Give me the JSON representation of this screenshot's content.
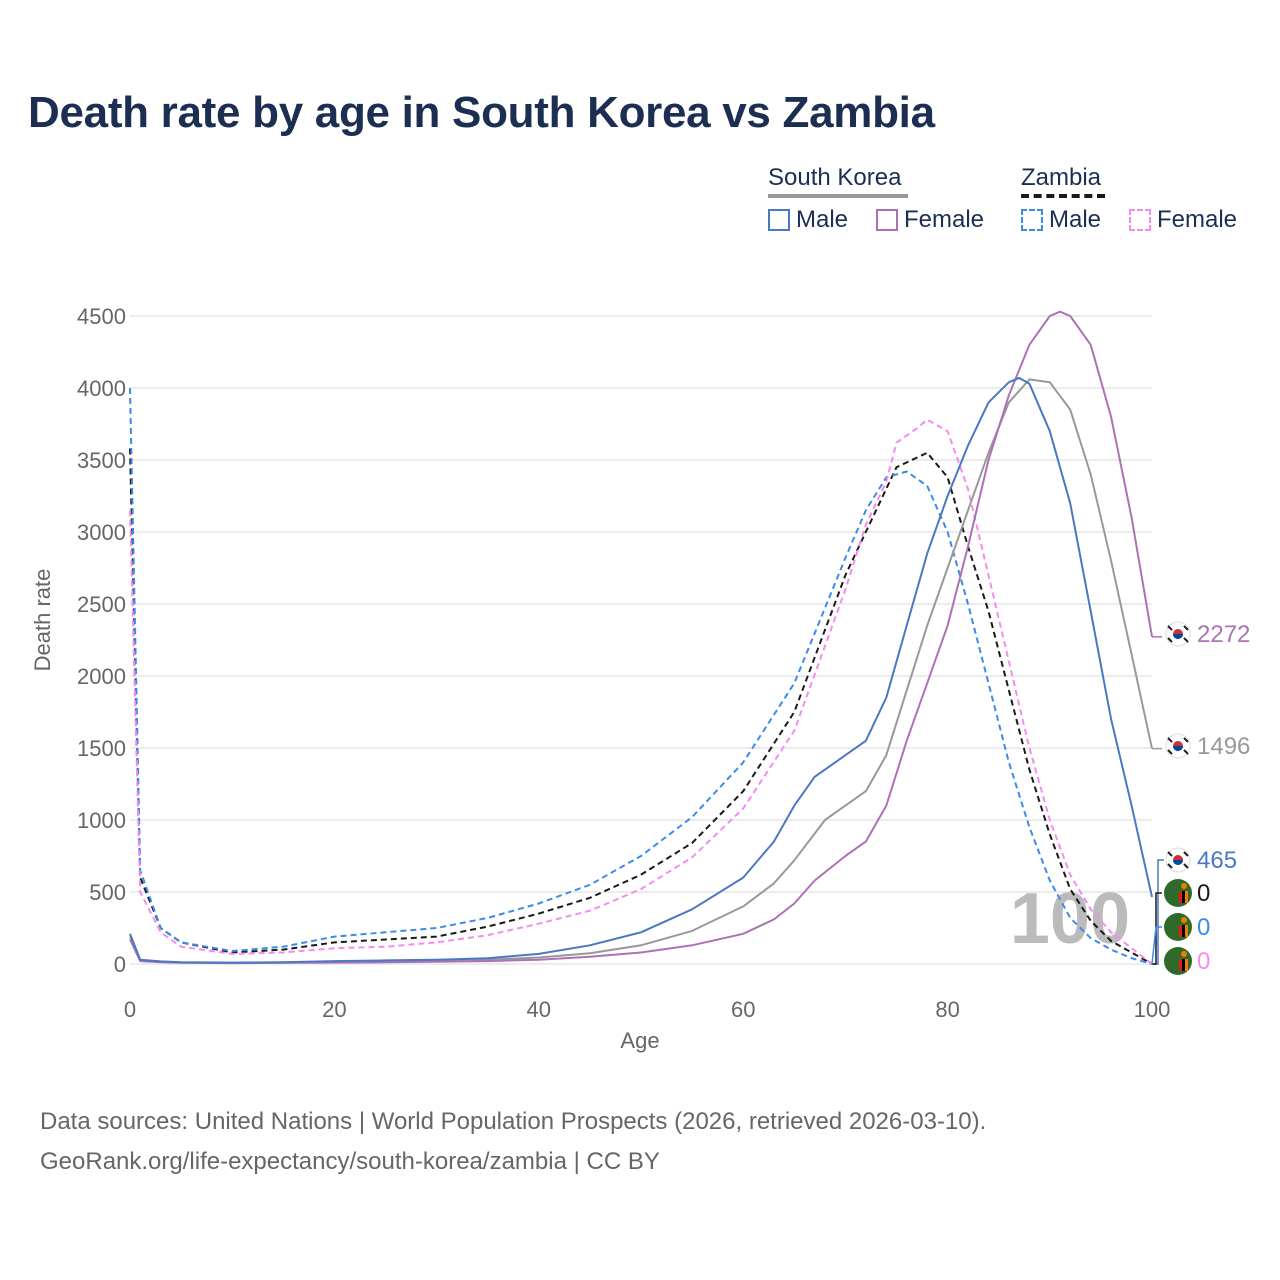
{
  "title": "Death rate by age in South Korea vs Zambia",
  "legend": {
    "south_korea": "South Korea",
    "zambia": "Zambia",
    "male": "Male",
    "female": "Female"
  },
  "footer": {
    "line1": "Data sources: United Nations | World Population Prospects (2026, retrieved 2026-03-10).",
    "line2": "GeoRank.org/life-expectancy/south-korea/zambia | CC BY"
  },
  "watermark_age": "100",
  "colors": {
    "kr_male": "#4a78c2",
    "kr_female": "#ad72b4",
    "kr_total": "#999999",
    "zm_male": "#3d8be8",
    "zm_female": "#f58af0",
    "zm_total": "#1a1a1a",
    "grid": "#e6e6e6",
    "title": "#1c2f52"
  },
  "chart_data": {
    "type": "line",
    "xlabel": "Age",
    "ylabel": "Death rate",
    "xlim": [
      0,
      100
    ],
    "ylim": [
      0,
      4500
    ],
    "xticks": [
      0,
      20,
      40,
      60,
      80,
      100
    ],
    "yticks": [
      0,
      500,
      1000,
      1500,
      2000,
      2500,
      3000,
      3500,
      4000,
      4500
    ],
    "series": [
      {
        "id": "zm_total",
        "name": "Zambia total",
        "style": "dashed",
        "points": [
          [
            0,
            3580
          ],
          [
            1,
            600
          ],
          [
            3,
            250
          ],
          [
            5,
            150
          ],
          [
            10,
            80
          ],
          [
            15,
            100
          ],
          [
            20,
            150
          ],
          [
            25,
            170
          ],
          [
            30,
            190
          ],
          [
            35,
            260
          ],
          [
            40,
            350
          ],
          [
            45,
            460
          ],
          [
            50,
            620
          ],
          [
            55,
            840
          ],
          [
            60,
            1200
          ],
          [
            65,
            1750
          ],
          [
            70,
            2700
          ],
          [
            72,
            3000
          ],
          [
            75,
            3450
          ],
          [
            78,
            3550
          ],
          [
            80,
            3380
          ],
          [
            82,
            2900
          ],
          [
            84,
            2450
          ],
          [
            86,
            1900
          ],
          [
            88,
            1350
          ],
          [
            90,
            900
          ],
          [
            92,
            520
          ],
          [
            94,
            300
          ],
          [
            96,
            160
          ],
          [
            98,
            80
          ],
          [
            100,
            0
          ]
        ],
        "end_label": "0"
      },
      {
        "id": "zm_male",
        "name": "Zambia Male",
        "style": "dashed",
        "points": [
          [
            0,
            4000
          ],
          [
            1,
            650
          ],
          [
            3,
            250
          ],
          [
            5,
            150
          ],
          [
            10,
            90
          ],
          [
            15,
            120
          ],
          [
            20,
            190
          ],
          [
            25,
            220
          ],
          [
            30,
            250
          ],
          [
            35,
            320
          ],
          [
            40,
            420
          ],
          [
            45,
            550
          ],
          [
            50,
            750
          ],
          [
            55,
            1020
          ],
          [
            60,
            1400
          ],
          [
            65,
            1950
          ],
          [
            70,
            2820
          ],
          [
            72,
            3150
          ],
          [
            74,
            3380
          ],
          [
            76,
            3420
          ],
          [
            78,
            3320
          ],
          [
            80,
            3000
          ],
          [
            82,
            2500
          ],
          [
            84,
            1950
          ],
          [
            86,
            1400
          ],
          [
            88,
            950
          ],
          [
            90,
            580
          ],
          [
            92,
            320
          ],
          [
            94,
            180
          ],
          [
            96,
            100
          ],
          [
            98,
            40
          ],
          [
            100,
            0
          ]
        ],
        "end_label": "0"
      },
      {
        "id": "zm_female",
        "name": "Zambia Female",
        "style": "dashed",
        "points": [
          [
            0,
            3150
          ],
          [
            1,
            500
          ],
          [
            3,
            220
          ],
          [
            5,
            120
          ],
          [
            10,
            70
          ],
          [
            15,
            80
          ],
          [
            20,
            110
          ],
          [
            25,
            120
          ],
          [
            30,
            150
          ],
          [
            35,
            200
          ],
          [
            40,
            280
          ],
          [
            45,
            370
          ],
          [
            50,
            520
          ],
          [
            55,
            740
          ],
          [
            60,
            1080
          ],
          [
            65,
            1620
          ],
          [
            70,
            2600
          ],
          [
            72,
            3050
          ],
          [
            74,
            3350
          ],
          [
            75,
            3620
          ],
          [
            77,
            3720
          ],
          [
            78,
            3780
          ],
          [
            80,
            3700
          ],
          [
            82,
            3300
          ],
          [
            84,
            2700
          ],
          [
            86,
            2100
          ],
          [
            88,
            1500
          ],
          [
            90,
            1000
          ],
          [
            92,
            620
          ],
          [
            94,
            380
          ],
          [
            96,
            220
          ],
          [
            98,
            110
          ],
          [
            100,
            0
          ]
        ],
        "end_label": "0"
      },
      {
        "id": "kr_total",
        "name": "South Korea total",
        "style": "solid",
        "points": [
          [
            0,
            190
          ],
          [
            1,
            25
          ],
          [
            3,
            15
          ],
          [
            5,
            10
          ],
          [
            10,
            8
          ],
          [
            15,
            10
          ],
          [
            20,
            15
          ],
          [
            25,
            18
          ],
          [
            30,
            22
          ],
          [
            35,
            30
          ],
          [
            40,
            45
          ],
          [
            45,
            75
          ],
          [
            50,
            130
          ],
          [
            55,
            230
          ],
          [
            60,
            400
          ],
          [
            63,
            560
          ],
          [
            65,
            720
          ],
          [
            68,
            1000
          ],
          [
            70,
            1100
          ],
          [
            72,
            1200
          ],
          [
            74,
            1450
          ],
          [
            76,
            1900
          ],
          [
            78,
            2350
          ],
          [
            80,
            2750
          ],
          [
            82,
            3150
          ],
          [
            84,
            3550
          ],
          [
            86,
            3900
          ],
          [
            88,
            4060
          ],
          [
            90,
            4040
          ],
          [
            92,
            3850
          ],
          [
            94,
            3400
          ],
          [
            96,
            2800
          ],
          [
            98,
            2150
          ],
          [
            100,
            1496
          ]
        ],
        "end_label": "1496"
      },
      {
        "id": "kr_female",
        "name": "South Korea Female",
        "style": "solid",
        "points": [
          [
            0,
            170
          ],
          [
            1,
            20
          ],
          [
            3,
            12
          ],
          [
            5,
            8
          ],
          [
            10,
            6
          ],
          [
            15,
            8
          ],
          [
            20,
            10
          ],
          [
            25,
            12
          ],
          [
            30,
            15
          ],
          [
            35,
            20
          ],
          [
            40,
            30
          ],
          [
            45,
            50
          ],
          [
            50,
            80
          ],
          [
            55,
            130
          ],
          [
            60,
            210
          ],
          [
            63,
            310
          ],
          [
            65,
            420
          ],
          [
            67,
            580
          ],
          [
            70,
            750
          ],
          [
            72,
            850
          ],
          [
            74,
            1100
          ],
          [
            76,
            1550
          ],
          [
            78,
            1950
          ],
          [
            80,
            2350
          ],
          [
            82,
            2900
          ],
          [
            84,
            3500
          ],
          [
            86,
            3950
          ],
          [
            88,
            4300
          ],
          [
            90,
            4500
          ],
          [
            91,
            4530
          ],
          [
            92,
            4500
          ],
          [
            94,
            4300
          ],
          [
            96,
            3800
          ],
          [
            98,
            3100
          ],
          [
            100,
            2272
          ]
        ],
        "end_label": "2272"
      },
      {
        "id": "kr_male",
        "name": "South Korea Male",
        "style": "solid",
        "points": [
          [
            0,
            210
          ],
          [
            1,
            30
          ],
          [
            3,
            18
          ],
          [
            5,
            12
          ],
          [
            10,
            10
          ],
          [
            15,
            12
          ],
          [
            20,
            20
          ],
          [
            25,
            25
          ],
          [
            30,
            30
          ],
          [
            35,
            40
          ],
          [
            40,
            70
          ],
          [
            45,
            130
          ],
          [
            50,
            220
          ],
          [
            55,
            380
          ],
          [
            60,
            600
          ],
          [
            63,
            850
          ],
          [
            65,
            1100
          ],
          [
            67,
            1300
          ],
          [
            70,
            1450
          ],
          [
            72,
            1550
          ],
          [
            74,
            1850
          ],
          [
            76,
            2350
          ],
          [
            78,
            2850
          ],
          [
            80,
            3250
          ],
          [
            82,
            3600
          ],
          [
            84,
            3900
          ],
          [
            86,
            4040
          ],
          [
            87,
            4070
          ],
          [
            88,
            4030
          ],
          [
            90,
            3700
          ],
          [
            92,
            3200
          ],
          [
            94,
            2450
          ],
          [
            96,
            1700
          ],
          [
            98,
            1100
          ],
          [
            100,
            465
          ]
        ],
        "end_label": "465"
      }
    ]
  }
}
